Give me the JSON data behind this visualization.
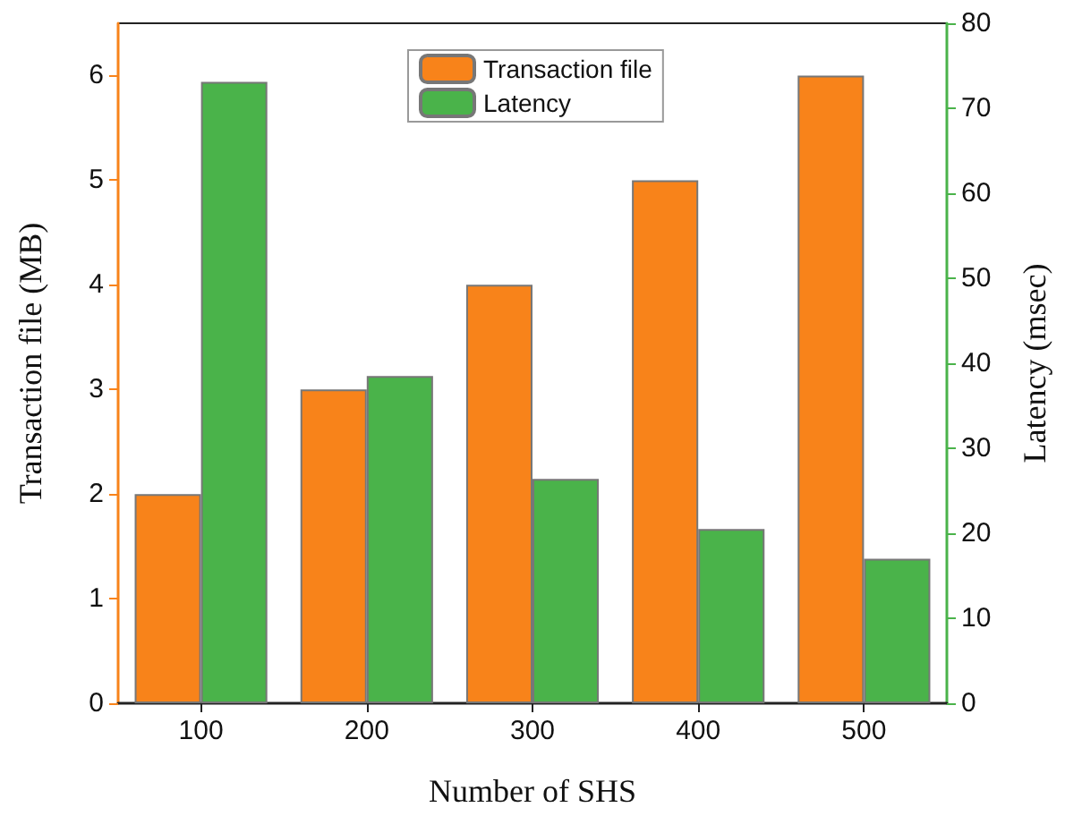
{
  "chart_data": {
    "type": "bar",
    "xlabel": "Number of SHS",
    "ylabel": "Transaction file (MB)",
    "y2label": "Latency (msec)",
    "categories": [
      "100",
      "200",
      "300",
      "400",
      "500"
    ],
    "series": [
      {
        "name": "Transaction file",
        "color": "#f8831a",
        "values": [
          2,
          3,
          4,
          5,
          6
        ]
      },
      {
        "name": "Latency",
        "color": "#4ab34a",
        "axis": "y2",
        "values": [
          73.1,
          38.5,
          26.4,
          20.5,
          17.0
        ]
      }
    ],
    "ylim": [
      0,
      6.5
    ],
    "yticks": [
      0,
      1,
      2,
      3,
      4,
      5,
      6
    ],
    "y2lim": [
      0,
      80
    ],
    "y2ticks": [
      0,
      10,
      20,
      30,
      40,
      50,
      60,
      70,
      80
    ],
    "legend": "top",
    "grid": false
  }
}
